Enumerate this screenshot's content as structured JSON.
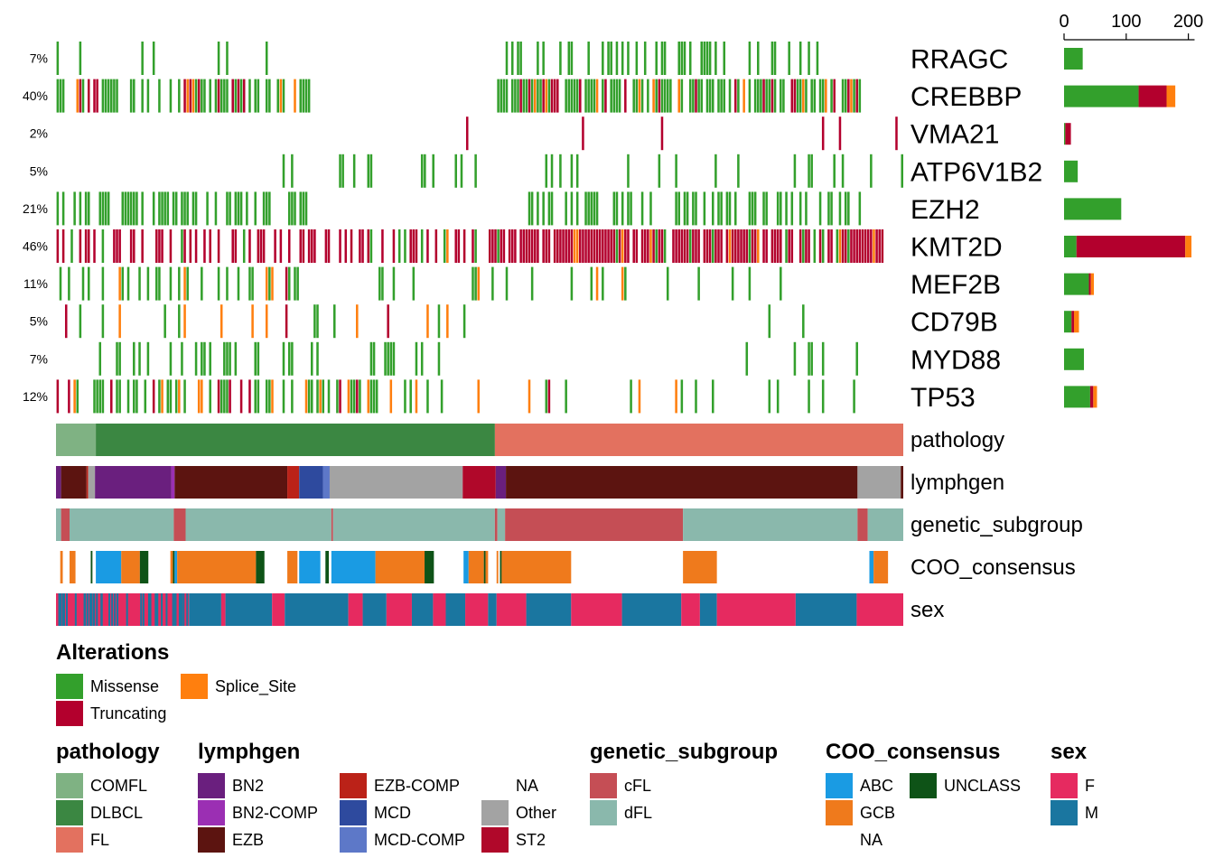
{
  "chart_data": {
    "type": "oncoprint",
    "genes": [
      {
        "name": "RRAGC",
        "pct": "7%",
        "counts": {
          "Missense": 30,
          "Truncating": 0,
          "Splice_Site": 0
        }
      },
      {
        "name": "CREBBP",
        "pct": "40%",
        "counts": {
          "Missense": 120,
          "Truncating": 45,
          "Splice_Site": 14
        }
      },
      {
        "name": "VMA21",
        "pct": "2%",
        "counts": {
          "Missense": 2,
          "Truncating": 9,
          "Splice_Site": 0
        }
      },
      {
        "name": "ATP6V1B2",
        "pct": "5%",
        "counts": {
          "Missense": 22,
          "Truncating": 0,
          "Splice_Site": 0
        }
      },
      {
        "name": "EZH2",
        "pct": "21%",
        "counts": {
          "Missense": 92,
          "Truncating": 0,
          "Splice_Site": 0
        }
      },
      {
        "name": "KMT2D",
        "pct": "46%",
        "counts": {
          "Missense": 20,
          "Truncating": 175,
          "Splice_Site": 10
        }
      },
      {
        "name": "MEF2B",
        "pct": "11%",
        "counts": {
          "Missense": 40,
          "Truncating": 3,
          "Splice_Site": 5
        }
      },
      {
        "name": "CD79B",
        "pct": "5%",
        "counts": {
          "Missense": 12,
          "Truncating": 4,
          "Splice_Site": 8
        }
      },
      {
        "name": "MYD88",
        "pct": "7%",
        "counts": {
          "Missense": 32,
          "Truncating": 0,
          "Splice_Site": 0
        }
      },
      {
        "name": "TP53",
        "pct": "12%",
        "counts": {
          "Missense": 42,
          "Truncating": 5,
          "Splice_Site": 6
        }
      }
    ],
    "barplot_axis": {
      "ticks": [
        0,
        100,
        200
      ],
      "max": 210
    },
    "alteration_colors": {
      "Missense": "#33a02c",
      "Truncating": "#b3002d",
      "Splice_Site": "#ff7f0e"
    },
    "annotation_tracks": [
      {
        "name": "pathology",
        "segments": [
          [
            "COMFL",
            0.0,
            0.047
          ],
          [
            "DLBCL",
            0.047,
            0.518
          ],
          [
            "FL",
            0.518,
            1.0
          ]
        ]
      },
      {
        "name": "lymphgen",
        "segments": [
          [
            "BN2",
            0.0,
            0.006
          ],
          [
            "EZB",
            0.006,
            0.036
          ],
          [
            "EZB-COMP",
            0.036,
            0.038
          ],
          [
            "Other",
            0.038,
            0.046
          ],
          [
            "BN2",
            0.046,
            0.136
          ],
          [
            "BN2-COMP",
            0.136,
            0.14
          ],
          [
            "EZB",
            0.14,
            0.273
          ],
          [
            "EZB-COMP",
            0.273,
            0.287
          ],
          [
            "MCD",
            0.287,
            0.315
          ],
          [
            "MCD-COMP",
            0.315,
            0.323
          ],
          [
            "Other",
            0.323,
            0.48
          ],
          [
            "ST2",
            0.48,
            0.519
          ],
          [
            "BN2",
            0.519,
            0.531
          ],
          [
            "EZB",
            0.531,
            0.946
          ],
          [
            "Other",
            0.946,
            0.997
          ],
          [
            "EZB",
            0.997,
            1.0
          ]
        ]
      },
      {
        "name": "genetic_subgroup",
        "segments": [
          [
            "dFL",
            0.0,
            0.006
          ],
          [
            "cFL",
            0.006,
            0.016
          ],
          [
            "dFL",
            0.016,
            0.139
          ],
          [
            "cFL",
            0.139,
            0.153
          ],
          [
            "dFL",
            0.153,
            0.325
          ],
          [
            "cFL",
            0.325,
            0.327
          ],
          [
            "dFL",
            0.327,
            0.518
          ],
          [
            "cFL",
            0.518,
            0.521
          ],
          [
            "dFL",
            0.521,
            0.53
          ],
          [
            "cFL",
            0.53,
            0.74
          ],
          [
            "dFL",
            0.74,
            0.946
          ],
          [
            "cFL",
            0.946,
            0.958
          ],
          [
            "dFL",
            0.958,
            1.0
          ]
        ]
      },
      {
        "name": "COO_consensus",
        "segments": [
          [
            "GCB",
            0.005,
            0.008
          ],
          [
            "GCB",
            0.016,
            0.023
          ],
          [
            "UNCLASS",
            0.041,
            0.043
          ],
          [
            "ABC",
            0.047,
            0.077
          ],
          [
            "GCB",
            0.077,
            0.099
          ],
          [
            "UNCLASS",
            0.099,
            0.109
          ],
          [
            "GCB",
            0.135,
            0.138
          ],
          [
            "UNCLASS",
            0.138,
            0.14
          ],
          [
            "ABC",
            0.14,
            0.143
          ],
          [
            "GCB",
            0.143,
            0.236
          ],
          [
            "UNCLASS",
            0.236,
            0.246
          ],
          [
            "GCB",
            0.273,
            0.285
          ],
          [
            "ABC",
            0.287,
            0.312
          ],
          [
            "UNCLASS",
            0.318,
            0.322
          ],
          [
            "ABC",
            0.325,
            0.377
          ],
          [
            "GCB",
            0.377,
            0.435
          ],
          [
            "UNCLASS",
            0.435,
            0.446
          ],
          [
            "ABC",
            0.481,
            0.487
          ],
          [
            "GCB",
            0.487,
            0.505
          ],
          [
            "UNCLASS",
            0.505,
            0.507
          ],
          [
            "GCB",
            0.507,
            0.51
          ],
          [
            "GCB",
            0.52,
            0.522
          ],
          [
            "UNCLASS",
            0.524,
            0.526
          ],
          [
            "GCB",
            0.526,
            0.608
          ],
          [
            "GCB",
            0.74,
            0.78
          ],
          [
            "ABC",
            0.96,
            0.965
          ],
          [
            "GCB",
            0.965,
            0.982
          ]
        ]
      },
      {
        "name": "sex",
        "segments": [
          [
            "F",
            0.0,
            0.157
          ],
          [
            "M",
            0.157,
            0.195
          ],
          [
            "F",
            0.195,
            0.2
          ],
          [
            "M",
            0.2,
            0.255
          ],
          [
            "F",
            0.255,
            0.27
          ],
          [
            "M",
            0.27,
            0.345
          ],
          [
            "F",
            0.345,
            0.362
          ],
          [
            "M",
            0.362,
            0.39
          ],
          [
            "F",
            0.39,
            0.42
          ],
          [
            "M",
            0.42,
            0.445
          ],
          [
            "F",
            0.445,
            0.46
          ],
          [
            "M",
            0.46,
            0.483
          ],
          [
            "F",
            0.483,
            0.51
          ],
          [
            "M",
            0.51,
            0.52
          ],
          [
            "F",
            0.52,
            0.555
          ],
          [
            "M",
            0.555,
            0.608
          ],
          [
            "F",
            0.608,
            0.668
          ],
          [
            "M",
            0.668,
            0.738
          ],
          [
            "F",
            0.738,
            0.76
          ],
          [
            "M",
            0.76,
            0.78
          ],
          [
            "F",
            0.78,
            0.873
          ],
          [
            "M",
            0.873,
            0.945
          ],
          [
            "F",
            0.945,
            1.0
          ]
        ]
      }
    ],
    "annotation_colors": {
      "pathology": {
        "COMFL": "#7fb283",
        "DLBCL": "#3b8742",
        "FL": "#e3715f"
      },
      "lymphgen": {
        "BN2": "#6a1f7e",
        "BN2-COMP": "#9b2fb3",
        "EZB": "#5c1410",
        "EZB-COMP": "#bb2218",
        "MCD": "#2e4a9e",
        "MCD-COMP": "#5d78c8",
        "Other": "#a3a3a3",
        "ST2": "#b0082a",
        "NA": "#ffffff"
      },
      "genetic_subgroup": {
        "cFL": "#c54e55",
        "dFL": "#8ab8ac"
      },
      "COO_consensus": {
        "ABC": "#1a9be3",
        "GCB": "#ef7a1c",
        "UNCLASS": "#0e5317",
        "NA": "#ffffff"
      },
      "sex": {
        "F": "#e62a60",
        "M": "#1a76a0"
      }
    }
  },
  "legends": {
    "alterations": {
      "title": "Alterations",
      "items": [
        "Missense",
        "Splice_Site",
        "Truncating"
      ]
    },
    "pathology": {
      "title": "pathology",
      "items": [
        "COMFL",
        "DLBCL",
        "FL"
      ]
    },
    "lymphgen": {
      "title": "lymphgen",
      "items": [
        "BN2",
        "BN2-COMP",
        "EZB",
        "EZB-COMP",
        "MCD",
        "MCD-COMP",
        "NA",
        "Other",
        "ST2"
      ]
    },
    "genetic_subgroup": {
      "title": "genetic_subgroup",
      "items": [
        "cFL",
        "dFL"
      ]
    },
    "COO_consensus": {
      "title": "COO_consensus",
      "items": [
        "ABC",
        "GCB",
        "NA",
        "UNCLASS"
      ]
    },
    "sex": {
      "title": "sex",
      "items": [
        "F",
        "M"
      ]
    }
  }
}
